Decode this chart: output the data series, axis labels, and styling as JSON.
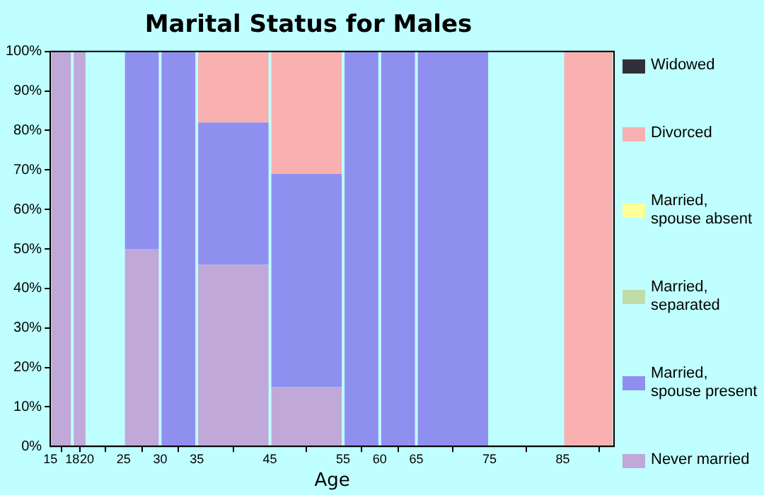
{
  "chart_data": {
    "type": "bar",
    "title": "Marital Status for Males",
    "xlabel": "Age",
    "stacked": true,
    "legend": "right",
    "grid": false,
    "x": [
      16.5,
      19,
      22.5,
      27.5,
      32.5,
      40,
      50,
      57.5,
      62.5,
      70,
      80,
      88.5
    ],
    "xlim": [
      15,
      92
    ],
    "xticks": [
      15,
      18,
      20,
      25,
      30,
      35,
      45,
      55,
      60,
      65,
      75,
      85
    ],
    "ylim": [
      0,
      100
    ],
    "yticks": [
      {
        "value": 0,
        "label": "0%"
      },
      {
        "value": 10,
        "label": "10%"
      },
      {
        "value": 20,
        "label": "20%"
      },
      {
        "value": 30,
        "label": "30%"
      },
      {
        "value": 40,
        "label": "40%"
      },
      {
        "value": 50,
        "label": "50%"
      },
      {
        "value": 60,
        "label": "60%"
      },
      {
        "value": 70,
        "label": "70%"
      },
      {
        "value": 80,
        "label": "80%"
      },
      {
        "value": 90,
        "label": "90%"
      },
      {
        "value": 100,
        "label": "100%"
      }
    ],
    "series": [
      {
        "name": "Never married",
        "color": "#c0a8d8",
        "values": [
          100,
          100,
          null,
          50,
          0,
          46,
          15,
          0,
          0,
          0,
          null,
          0
        ]
      },
      {
        "name": "Married, spouse present",
        "color": "#8f8ff0",
        "values": [
          0,
          0,
          null,
          50,
          100,
          36,
          54,
          100,
          100,
          100,
          null,
          0
        ]
      },
      {
        "name": "Married, separated",
        "color": "#c0dca8",
        "values": [
          0,
          0,
          null,
          0,
          0,
          0,
          0,
          0,
          0,
          0,
          null,
          0
        ]
      },
      {
        "name": "Married, spouse absent",
        "color": "#ffff99",
        "values": [
          0,
          0,
          null,
          0,
          0,
          0,
          0,
          0,
          0,
          0,
          null,
          0
        ]
      },
      {
        "name": "Divorced",
        "color": "#f8b0b0",
        "values": [
          0,
          0,
          null,
          0,
          0,
          18,
          31,
          0,
          0,
          0,
          null,
          100
        ]
      },
      {
        "name": "Widowed",
        "color": "#303038",
        "values": [
          0,
          0,
          null,
          0,
          0,
          0,
          0,
          0,
          0,
          0,
          null,
          0
        ]
      }
    ]
  }
}
